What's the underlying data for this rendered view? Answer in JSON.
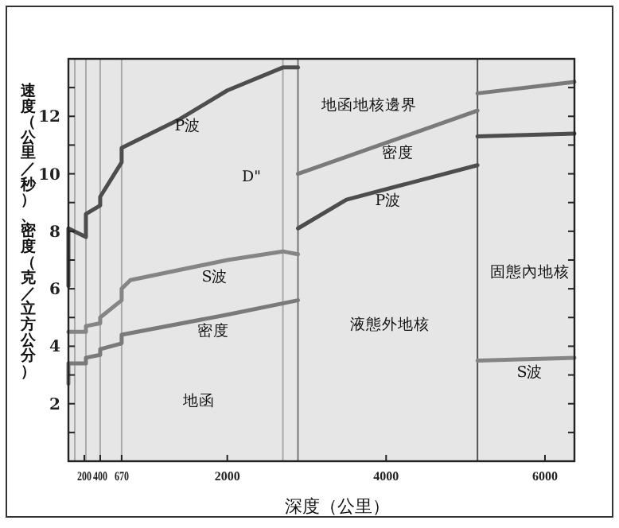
{
  "chart_data": {
    "type": "line",
    "xlabel": "深度（公里）",
    "ylabel": "速度（公里／秒）、密度（克／立方公分）",
    "xlim": [
      0,
      6371
    ],
    "ylim": [
      0,
      14
    ],
    "xticks": [
      200,
      400,
      670,
      2000,
      4000,
      6000
    ],
    "yticks": [
      {
        "value": 1,
        "label": null
      },
      2,
      {
        "value": 3,
        "label": null
      },
      4,
      {
        "value": 5,
        "label": null
      },
      6,
      {
        "value": 7,
        "label": null
      },
      8,
      {
        "value": 9,
        "label": null
      },
      10,
      {
        "value": 11,
        "label": null
      },
      12,
      {
        "value": 13,
        "label": null
      }
    ],
    "grid": false,
    "ref_lines": [
      {
        "axis": "x",
        "value": 80,
        "color": "#aaaaaa"
      },
      {
        "axis": "x",
        "value": 220,
        "color": "#aaaaaa"
      },
      {
        "axis": "x",
        "value": 400,
        "color": "#aaaaaa"
      },
      {
        "axis": "x",
        "value": 670,
        "color": "#aaaaaa"
      },
      {
        "axis": "x",
        "value": 2700,
        "color": "#aaaaaa"
      },
      {
        "axis": "x",
        "value": 2890,
        "color": "#777777"
      },
      {
        "axis": "x",
        "value": 5150,
        "color": "#555555"
      }
    ],
    "series": [
      {
        "color": "#4d4d4d",
        "x": [
          0,
          0,
          220,
          220,
          400,
          400,
          670,
          670,
          1400,
          2000,
          2700,
          2890,
          null,
          2890,
          3500,
          5150,
          null,
          5150,
          6371
        ],
        "values": [
          6.1,
          8.1,
          7.8,
          8.6,
          8.9,
          9.2,
          10.4,
          10.9,
          11.9,
          12.9,
          13.7,
          13.7,
          null,
          8.1,
          9.1,
          10.3,
          null,
          11.3,
          11.4
        ]
      },
      {
        "color": "#858585",
        "x": [
          0,
          220,
          220,
          400,
          400,
          670,
          670,
          780,
          2000,
          2700,
          2890,
          null,
          5150,
          6371
        ],
        "values": [
          4.5,
          4.5,
          4.7,
          4.8,
          5.0,
          5.6,
          6.0,
          6.3,
          7.0,
          7.3,
          7.2,
          null,
          3.5,
          3.6
        ]
      },
      {
        "color": "#7a7a7a",
        "x": [
          0,
          0,
          220,
          220,
          400,
          400,
          670,
          670,
          2000,
          2890,
          null,
          2890,
          5150,
          null,
          5150,
          6371
        ],
        "values": [
          2.7,
          3.4,
          3.4,
          3.6,
          3.7,
          3.9,
          4.1,
          4.4,
          5.1,
          5.6,
          null,
          10.0,
          12.2,
          null,
          12.8,
          13.2
        ]
      }
    ],
    "annotations": [
      "P波",
      "D\"",
      "S波",
      "密度",
      "地函",
      "地函地核邊界",
      "密度",
      "P波",
      "液態外地核",
      "固態內地核",
      "S波"
    ]
  }
}
